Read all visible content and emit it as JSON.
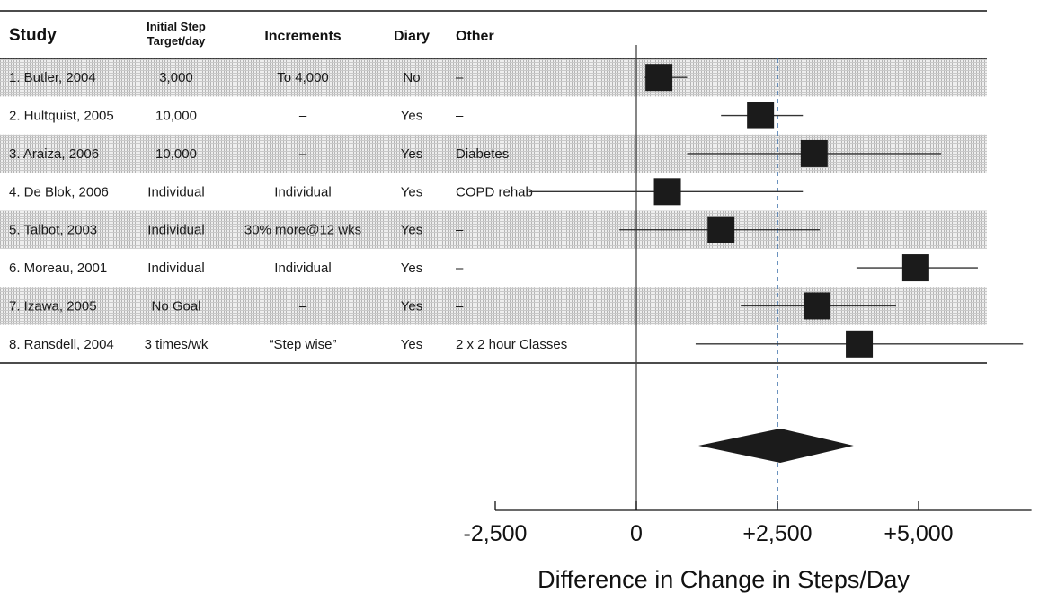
{
  "chart_data": {
    "type": "forest",
    "title": "",
    "xlabel": "Difference in Change in Steps/Day",
    "xlim": [
      -2500,
      7000
    ],
    "xticks": [
      {
        "value": -2500,
        "label": "-2,500"
      },
      {
        "value": 0,
        "label": "0"
      },
      {
        "value": 2500,
        "label": "+2,500"
      },
      {
        "value": 5000,
        "label": "+5,000"
      }
    ],
    "reference_line": 2500,
    "columns": [
      {
        "key": "study",
        "header": "Study"
      },
      {
        "key": "target",
        "header": "Initial Step Target/day"
      },
      {
        "key": "increments",
        "header": "Increments"
      },
      {
        "key": "diary",
        "header": "Diary"
      },
      {
        "key": "other",
        "header": "Other"
      }
    ],
    "studies": [
      {
        "study": "1. Butler, 2004",
        "target": "3,000",
        "increments": "To 4,000",
        "diary": "No",
        "other": "–",
        "estimate": 400,
        "ci": [
          150,
          900
        ],
        "shaded": true
      },
      {
        "study": "2. Hultquist, 2005",
        "target": "10,000",
        "increments": "–",
        "diary": "Yes",
        "other": "–",
        "estimate": 2200,
        "ci": [
          1500,
          2950
        ],
        "shaded": false
      },
      {
        "study": "3. Araiza, 2006",
        "target": "10,000",
        "increments": "–",
        "diary": "Yes",
        "other": "Diabetes",
        "estimate": 3150,
        "ci": [
          900,
          5400
        ],
        "shaded": true
      },
      {
        "study": "4. De Blok, 2006",
        "target": "Individual",
        "increments": "Individual",
        "diary": "Yes",
        "other": "COPD rehab",
        "estimate": 550,
        "ci": [
          -1900,
          2950
        ],
        "shaded": false
      },
      {
        "study": "5. Talbot, 2003",
        "target": "Individual",
        "increments": "30% more@12 wks",
        "diary": "Yes",
        "other": "–",
        "estimate": 1500,
        "ci": [
          -300,
          3250
        ],
        "shaded": true
      },
      {
        "study": "6. Moreau, 2001",
        "target": "Individual",
        "increments": "Individual",
        "diary": "Yes",
        "other": "–",
        "estimate": 4950,
        "ci": [
          3900,
          6050
        ],
        "shaded": false
      },
      {
        "study": "7. Izawa, 2005",
        "target": "No Goal",
        "increments": "–",
        "diary": "Yes",
        "other": "–",
        "estimate": 3200,
        "ci": [
          1850,
          4600
        ],
        "shaded": true
      },
      {
        "study": "8. Ransdell, 2004",
        "target": "3 times/wk",
        "increments": "“Step wise”",
        "diary": "Yes",
        "other": "2 x 2 hour Classes",
        "estimate": 3950,
        "ci": [
          1050,
          6850
        ],
        "shaded": false
      }
    ],
    "pooled": {
      "estimate": 2550,
      "ci": [
        1100,
        3850
      ]
    }
  }
}
